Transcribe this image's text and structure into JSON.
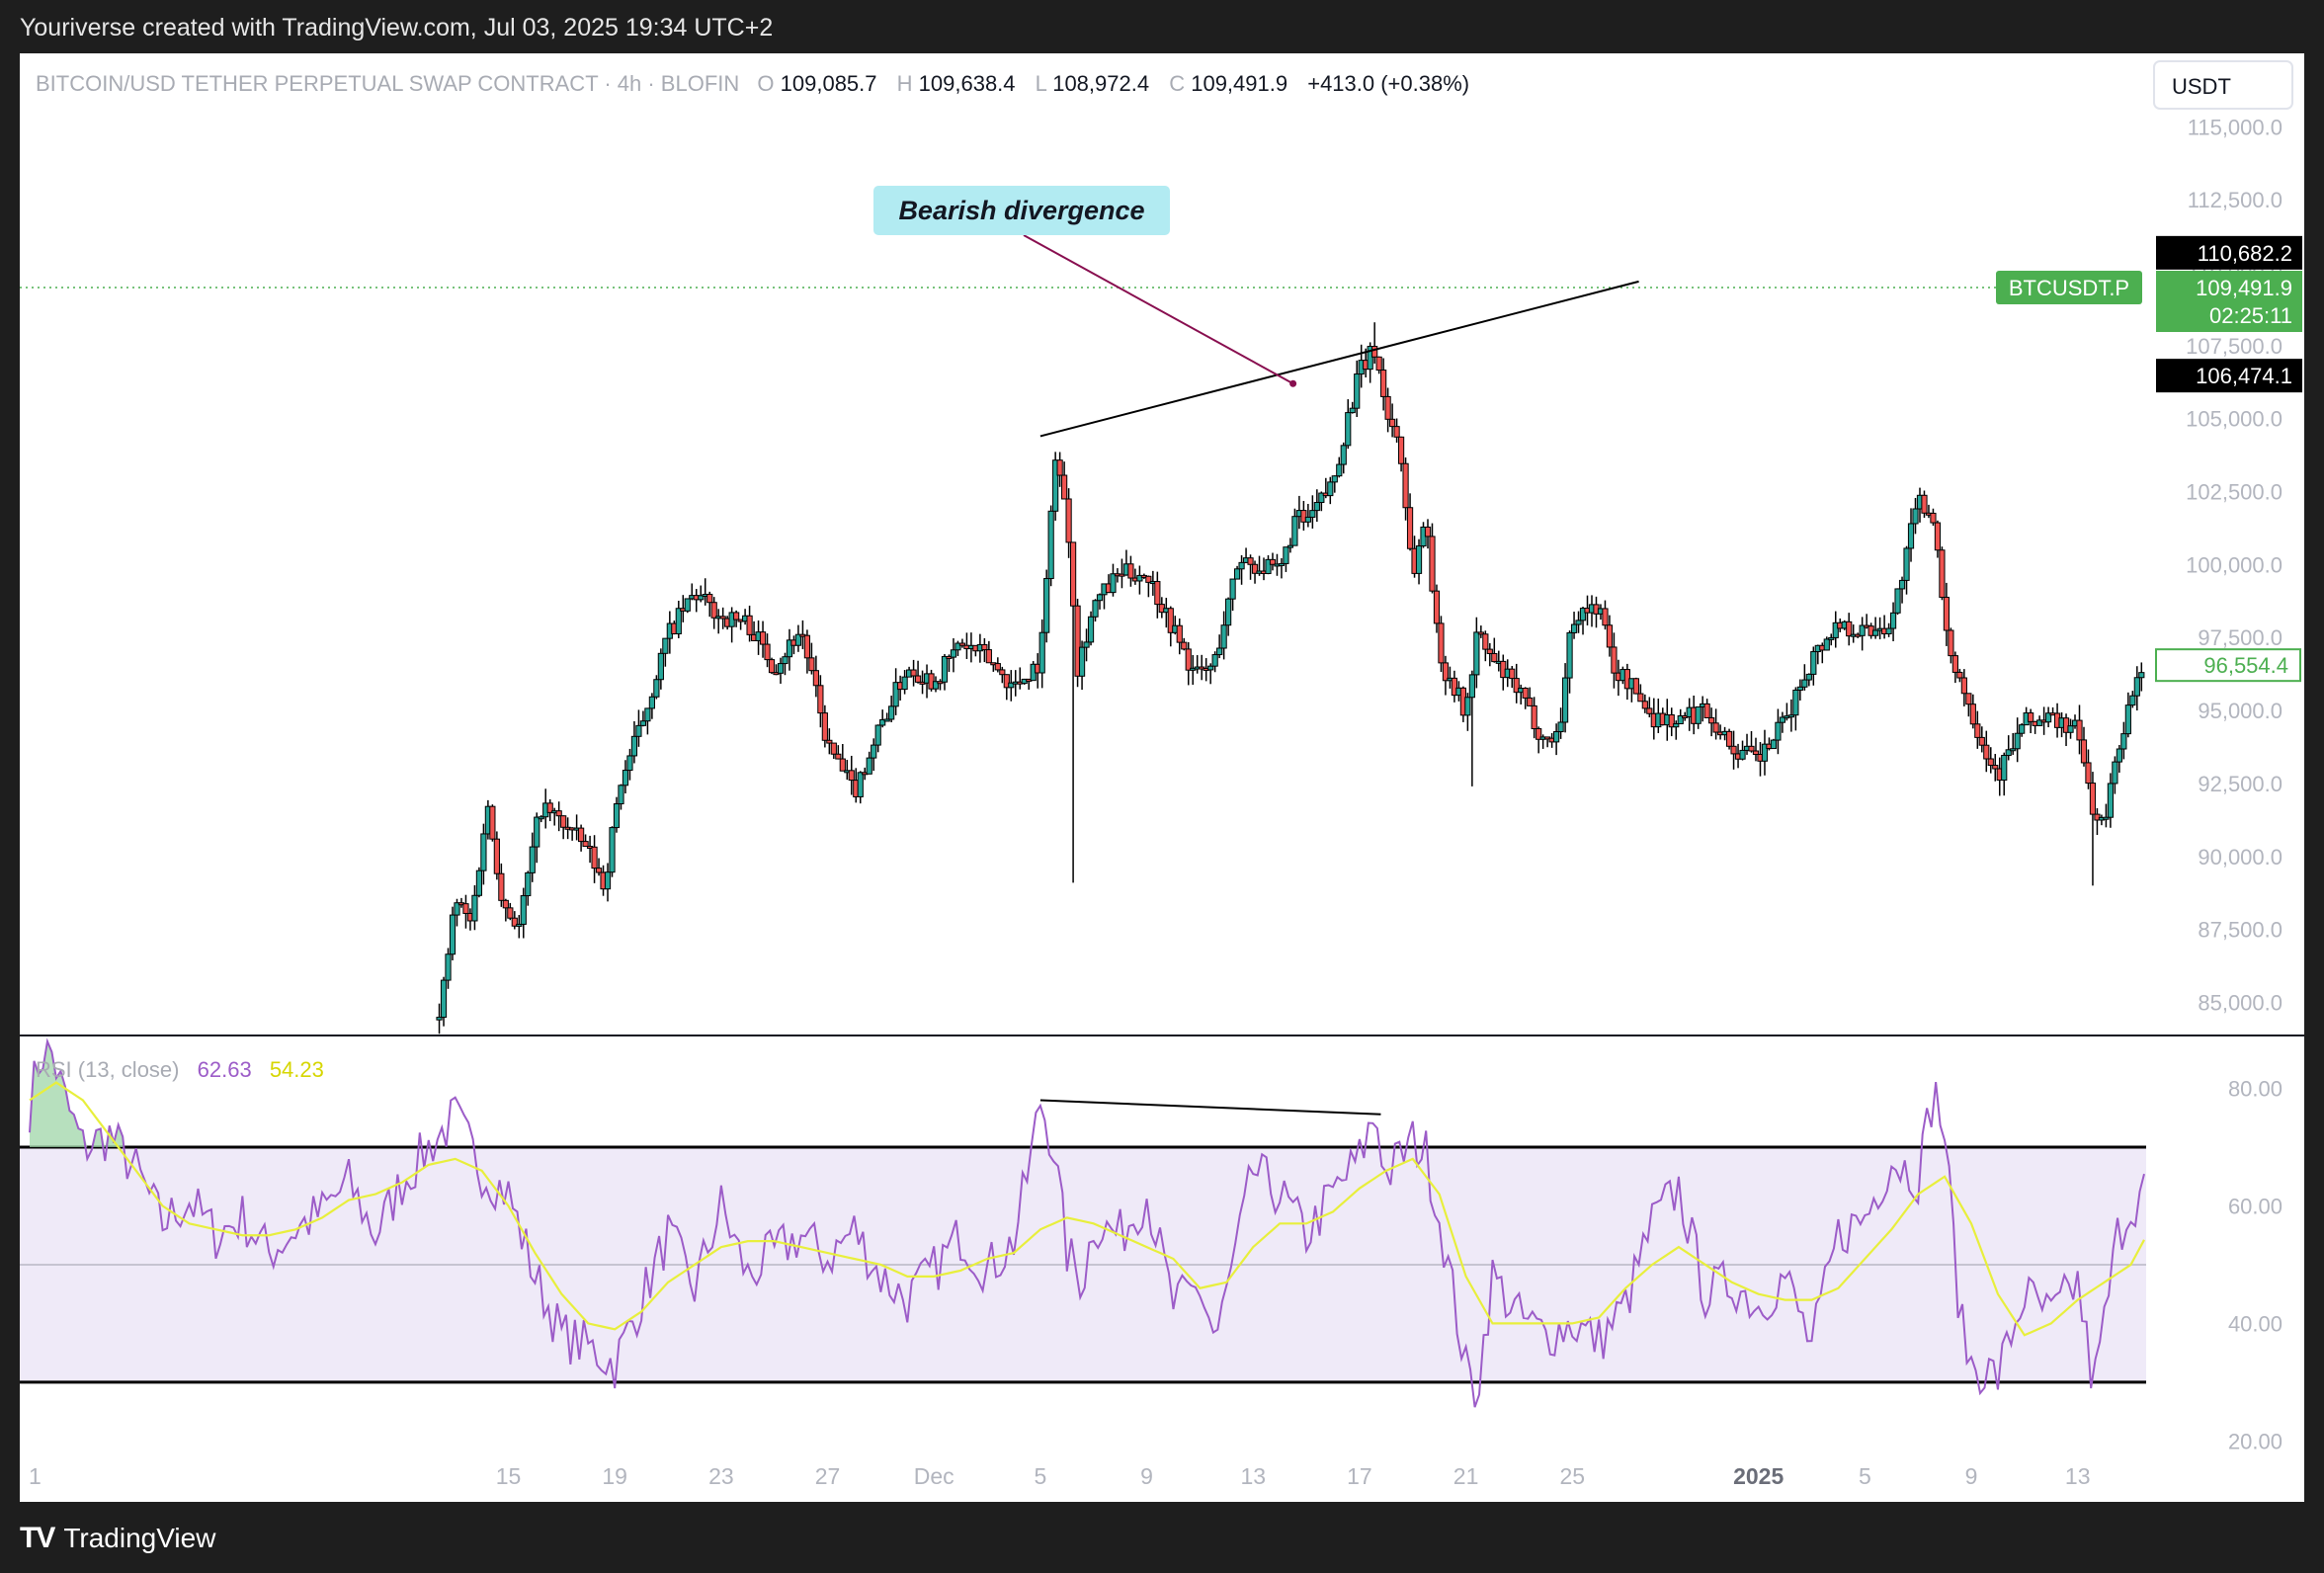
{
  "caption": "Youriverse created with TradingView.com, Jul 03, 2025 19:34 UTC+2",
  "footer": {
    "brand": "TradingView",
    "logo": "tradingview-logo"
  },
  "header": {
    "symbol": "BITCOIN/USD TETHER PERPETUAL SWAP CONTRACT · 4h · BLOFIN",
    "o_label": "O",
    "o": "109,085.7",
    "h_label": "H",
    "h": "109,638.4",
    "l_label": "L",
    "l": "108,972.4",
    "c_label": "C",
    "c": "109,491.9",
    "change": "+413.0 (+0.38%)",
    "currency": "USDT"
  },
  "colors": {
    "up": "#26a69a",
    "down": "#ef5350",
    "candle_outline": "#000000",
    "rsi": "#9c5cc8",
    "rsi_ma": "#e8ef3c",
    "band_fill": "#efeaf8",
    "last_price_bg": "#4caf50",
    "callout_bg": "#b2ebf2"
  },
  "chart_data": [
    {
      "type": "candlestick",
      "title": "BITCOIN/USD TETHER PERPETUAL SWAP CONTRACT · 4h · BLOFIN",
      "ylim": [
        84000,
        116500
      ],
      "y_ticks": [
        "115,000.0",
        "112,500.0",
        "110,000.0",
        "107,500.0",
        "105,000.0",
        "102,500.0",
        "100,000.0",
        "97,500.0",
        "95,000.0",
        "92,500.0",
        "90,000.0",
        "87,500.0",
        "85,000.0"
      ],
      "y_tick_values": [
        115000,
        112500,
        110000,
        107500,
        105000,
        102500,
        100000,
        97500,
        95000,
        92500,
        90000,
        87500,
        85000
      ],
      "x_ticks": [
        "1",
        "15",
        "19",
        "23",
        "27",
        "Dec",
        "5",
        "9",
        "13",
        "17",
        "21",
        "25",
        "2025",
        "5",
        "9",
        "13"
      ],
      "x_tick_days": [
        -3.8,
        14,
        18,
        22,
        26,
        30,
        34,
        38,
        42,
        46,
        50,
        54,
        61,
        65,
        69,
        73
      ],
      "x_range_days": [
        -4,
        75.5
      ],
      "path_anchors": [
        [
          11.4,
          84400
        ],
        [
          12,
          88500
        ],
        [
          12.6,
          87700
        ],
        [
          13.2,
          91800
        ],
        [
          13.8,
          88400
        ],
        [
          14.4,
          87600
        ],
        [
          15.2,
          91700
        ],
        [
          16,
          91200
        ],
        [
          17,
          90200
        ],
        [
          17.6,
          89000
        ],
        [
          18.2,
          92500
        ],
        [
          19,
          94500
        ],
        [
          20,
          97600
        ],
        [
          21,
          99000
        ],
        [
          22,
          98200
        ],
        [
          23,
          98000
        ],
        [
          24,
          96500
        ],
        [
          25,
          97800
        ],
        [
          26,
          93800
        ],
        [
          27,
          92200
        ],
        [
          28,
          94500
        ],
        [
          29,
          96500
        ],
        [
          30,
          96000
        ],
        [
          31,
          97300
        ],
        [
          32,
          96800
        ],
        [
          33,
          95800
        ],
        [
          34,
          96700
        ],
        [
          34.2,
          98800
        ],
        [
          34.5,
          103800
        ],
        [
          35,
          102000
        ],
        [
          35.4,
          96500
        ],
        [
          36,
          98600
        ],
        [
          37,
          99700
        ],
        [
          38,
          99700
        ],
        [
          39,
          97800
        ],
        [
          39.8,
          96200
        ],
        [
          40.5,
          96500
        ],
        [
          41.5,
          100300
        ],
        [
          42,
          100000
        ],
        [
          43,
          99700
        ],
        [
          43.6,
          101600
        ],
        [
          44,
          101400
        ],
        [
          45,
          102800
        ],
        [
          45.6,
          105200
        ],
        [
          46,
          106600
        ],
        [
          46.6,
          107400
        ],
        [
          47,
          105200
        ],
        [
          47.5,
          104200
        ],
        [
          48,
          99600
        ],
        [
          48.5,
          101700
        ],
        [
          49,
          96700
        ],
        [
          49.5,
          96000
        ],
        [
          50,
          94800
        ],
        [
          50.4,
          97600
        ],
        [
          51,
          96700
        ],
        [
          52,
          95600
        ],
        [
          53,
          93900
        ],
        [
          53.5,
          94300
        ],
        [
          54,
          98200
        ],
        [
          55,
          98600
        ],
        [
          55.6,
          96300
        ],
        [
          56,
          96100
        ],
        [
          57,
          94800
        ],
        [
          58,
          94600
        ],
        [
          59,
          95100
        ],
        [
          60,
          93700
        ],
        [
          61,
          93300
        ],
        [
          62,
          94600
        ],
        [
          63,
          96800
        ],
        [
          64,
          98000
        ],
        [
          65,
          97700
        ],
        [
          66,
          98000
        ],
        [
          67,
          102200
        ],
        [
          67.6,
          101700
        ],
        [
          68,
          97600
        ],
        [
          69,
          95000
        ],
        [
          69.6,
          93500
        ],
        [
          70,
          92800
        ],
        [
          71,
          94600
        ],
        [
          72,
          94700
        ],
        [
          73,
          94300
        ],
        [
          73.6,
          91500
        ],
        [
          74,
          91000
        ],
        [
          74.5,
          93700
        ],
        [
          75,
          95300
        ],
        [
          75.5,
          96554
        ]
      ],
      "last_price_line": 109491.9,
      "price_labels": [
        {
          "text": "110,682.2",
          "value": 110682.2
        },
        {
          "text": "106,474.1",
          "value": 106474.1
        }
      ],
      "last_price": {
        "symbol": "BTCUSDT.P",
        "price": "109,491.9",
        "countdown": "02:25:11",
        "value": 109491.9
      },
      "current_price": {
        "text": "96,554.4",
        "value": 96554.4
      },
      "trendline": [
        [
          34,
          104400
        ],
        [
          56.5,
          109700
        ]
      ],
      "annotation": {
        "text": "Bearish divergence",
        "points_to": [
          43.5,
          106200
        ]
      },
      "notable_lows": [
        {
          "day": 35.2,
          "low": 89100
        },
        {
          "day": 50.2,
          "low": 92400
        },
        {
          "day": 73.6,
          "low": 89000
        }
      ]
    },
    {
      "type": "line",
      "title": "RSI (13, close)",
      "series": [
        {
          "name": "RSI",
          "last_value": "62.63"
        },
        {
          "name": "RSI MA",
          "last_value": "54.23"
        }
      ],
      "ylim": [
        14,
        88
      ],
      "y_ticks": [
        "80.00",
        "60.00",
        "40.00",
        "20.00"
      ],
      "y_tick_values": [
        80,
        60,
        40,
        20
      ],
      "bands": {
        "upper": 70,
        "middle": 50,
        "lower": 30
      },
      "rsi_anchors": [
        [
          -4,
          77
        ],
        [
          -3.7,
          84
        ],
        [
          -3.3,
          88
        ],
        [
          -2.6,
          77
        ],
        [
          -2,
          70
        ],
        [
          -1,
          72
        ],
        [
          0,
          66
        ],
        [
          1,
          57
        ],
        [
          2,
          61
        ],
        [
          3,
          55
        ],
        [
          4,
          58
        ],
        [
          5,
          52
        ],
        [
          6,
          56
        ],
        [
          7,
          59
        ],
        [
          8,
          64
        ],
        [
          9,
          55
        ],
        [
          10,
          64
        ],
        [
          11,
          70
        ],
        [
          12,
          75
        ],
        [
          13,
          66
        ],
        [
          14,
          62
        ],
        [
          15,
          48
        ],
        [
          16,
          38
        ],
        [
          17,
          36
        ],
        [
          18,
          33
        ],
        [
          19,
          44
        ],
        [
          20,
          55
        ],
        [
          21,
          46
        ],
        [
          22,
          60
        ],
        [
          23,
          48
        ],
        [
          24,
          52
        ],
        [
          25,
          55
        ],
        [
          26,
          51
        ],
        [
          27,
          56
        ],
        [
          28,
          48
        ],
        [
          29,
          44
        ],
        [
          30,
          49
        ],
        [
          31,
          55
        ],
        [
          32,
          49
        ],
        [
          33,
          54
        ],
        [
          33.6,
          67
        ],
        [
          34,
          78
        ],
        [
          34.5,
          70
        ],
        [
          35,
          52
        ],
        [
          35.6,
          47
        ],
        [
          36,
          57
        ],
        [
          37,
          55
        ],
        [
          38,
          62
        ],
        [
          39,
          43
        ],
        [
          40,
          46
        ],
        [
          40.6,
          37
        ],
        [
          41.5,
          55
        ],
        [
          42,
          66
        ],
        [
          43,
          62
        ],
        [
          44,
          55
        ],
        [
          45,
          62
        ],
        [
          46,
          68
        ],
        [
          46.6,
          76
        ],
        [
          47,
          65
        ],
        [
          48,
          71
        ],
        [
          48.5,
          69
        ],
        [
          49,
          58
        ],
        [
          49.6,
          43
        ],
        [
          50,
          32
        ],
        [
          50.4,
          28
        ],
        [
          51,
          48
        ],
        [
          52,
          41
        ],
        [
          53,
          38
        ],
        [
          54,
          40
        ],
        [
          55,
          37
        ],
        [
          56,
          43
        ],
        [
          57,
          57
        ],
        [
          58,
          63
        ],
        [
          59,
          45
        ],
        [
          60,
          47
        ],
        [
          61,
          43
        ],
        [
          62,
          48
        ],
        [
          63,
          36
        ],
        [
          64,
          55
        ],
        [
          65,
          58
        ],
        [
          66,
          68
        ],
        [
          67,
          65
        ],
        [
          67.6,
          80
        ],
        [
          68,
          72
        ],
        [
          68.6,
          40
        ],
        [
          69,
          33
        ],
        [
          70,
          31
        ],
        [
          71,
          45
        ],
        [
          72,
          41
        ],
        [
          73,
          47
        ],
        [
          73.6,
          29
        ],
        [
          74,
          40
        ],
        [
          74.5,
          55
        ],
        [
          75,
          60
        ],
        [
          75.5,
          62.63
        ]
      ],
      "ma_anchors": [
        [
          -4,
          78
        ],
        [
          -3,
          81
        ],
        [
          -2,
          78
        ],
        [
          -1,
          72
        ],
        [
          0,
          66
        ],
        [
          1,
          60
        ],
        [
          2,
          57
        ],
        [
          3,
          56
        ],
        [
          4,
          55
        ],
        [
          5,
          55
        ],
        [
          6,
          56
        ],
        [
          7,
          58
        ],
        [
          8,
          61
        ],
        [
          9,
          62
        ],
        [
          10,
          64
        ],
        [
          11,
          67
        ],
        [
          12,
          68
        ],
        [
          13,
          66
        ],
        [
          14,
          60
        ],
        [
          15,
          52
        ],
        [
          16,
          45
        ],
        [
          17,
          40
        ],
        [
          18,
          39
        ],
        [
          19,
          42
        ],
        [
          20,
          47
        ],
        [
          21,
          50
        ],
        [
          22,
          53
        ],
        [
          23,
          54
        ],
        [
          24,
          54
        ],
        [
          25,
          53
        ],
        [
          26,
          52
        ],
        [
          27,
          51
        ],
        [
          28,
          50
        ],
        [
          29,
          48
        ],
        [
          30,
          48
        ],
        [
          31,
          49
        ],
        [
          32,
          51
        ],
        [
          33,
          52
        ],
        [
          34,
          56
        ],
        [
          35,
          58
        ],
        [
          36,
          57
        ],
        [
          37,
          55
        ],
        [
          38,
          53
        ],
        [
          39,
          51
        ],
        [
          40,
          46
        ],
        [
          41,
          47
        ],
        [
          42,
          53
        ],
        [
          43,
          57
        ],
        [
          44,
          57
        ],
        [
          45,
          59
        ],
        [
          46,
          63
        ],
        [
          47,
          66
        ],
        [
          48,
          68
        ],
        [
          49,
          62
        ],
        [
          50,
          48
        ],
        [
          51,
          40
        ],
        [
          52,
          40
        ],
        [
          53,
          40
        ],
        [
          54,
          40
        ],
        [
          55,
          41
        ],
        [
          56,
          46
        ],
        [
          57,
          50
        ],
        [
          58,
          53
        ],
        [
          59,
          50
        ],
        [
          60,
          47
        ],
        [
          61,
          45
        ],
        [
          62,
          44
        ],
        [
          63,
          44
        ],
        [
          64,
          46
        ],
        [
          65,
          51
        ],
        [
          66,
          56
        ],
        [
          67,
          62
        ],
        [
          68,
          65
        ],
        [
          69,
          57
        ],
        [
          70,
          45
        ],
        [
          71,
          38
        ],
        [
          72,
          40
        ],
        [
          73,
          44
        ],
        [
          74,
          47
        ],
        [
          75,
          50
        ],
        [
          75.5,
          54.23
        ]
      ],
      "divergence_line": [
        [
          34,
          78
        ],
        [
          46.8,
          75.6
        ]
      ]
    }
  ]
}
